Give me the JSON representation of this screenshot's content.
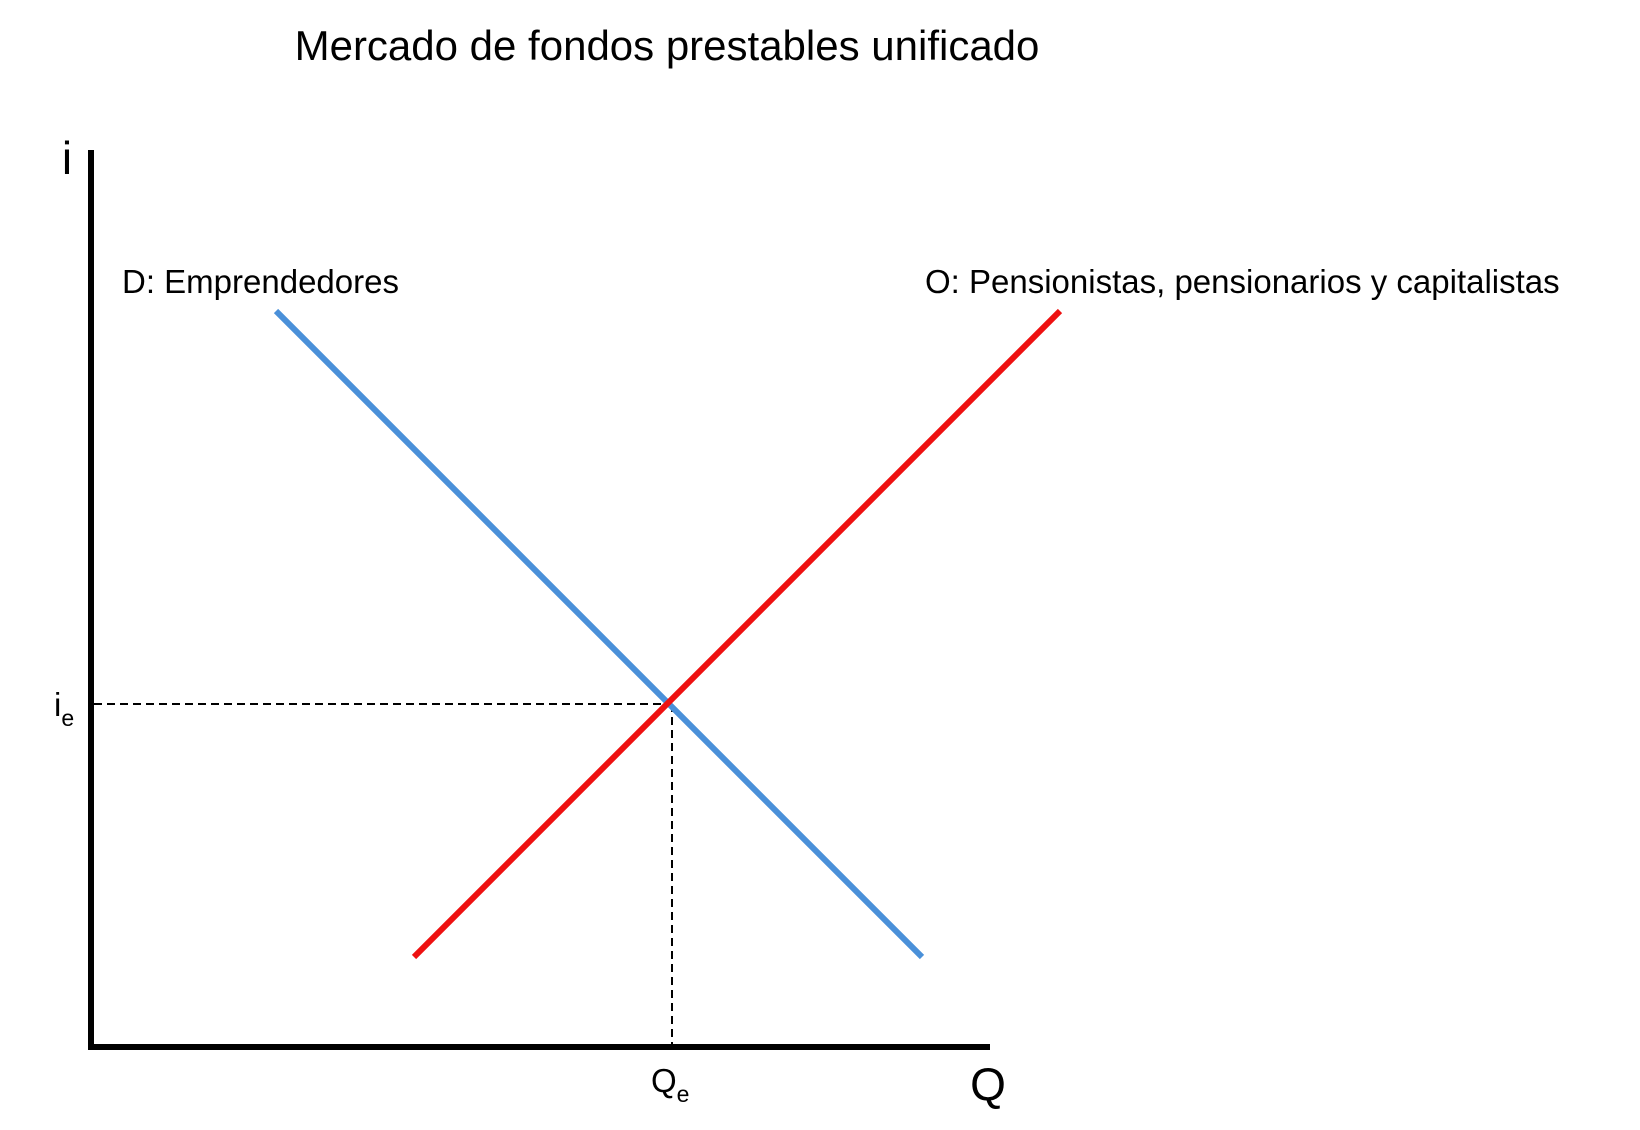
{
  "title": "Mercado de fondos prestables unificado",
  "axes": {
    "y_label": "i",
    "x_label": "Q"
  },
  "curves": {
    "demand": {
      "label": "D: Emprendedores",
      "color": "#4A90D9"
    },
    "supply": {
      "label": "O: Pensionistas, pensionarios y capitalistas",
      "color": "#EE1111"
    }
  },
  "equilibrium": {
    "rate_label": {
      "base": "i",
      "sub": "e"
    },
    "quantity_label": {
      "base": "Q",
      "sub": "e"
    }
  }
}
